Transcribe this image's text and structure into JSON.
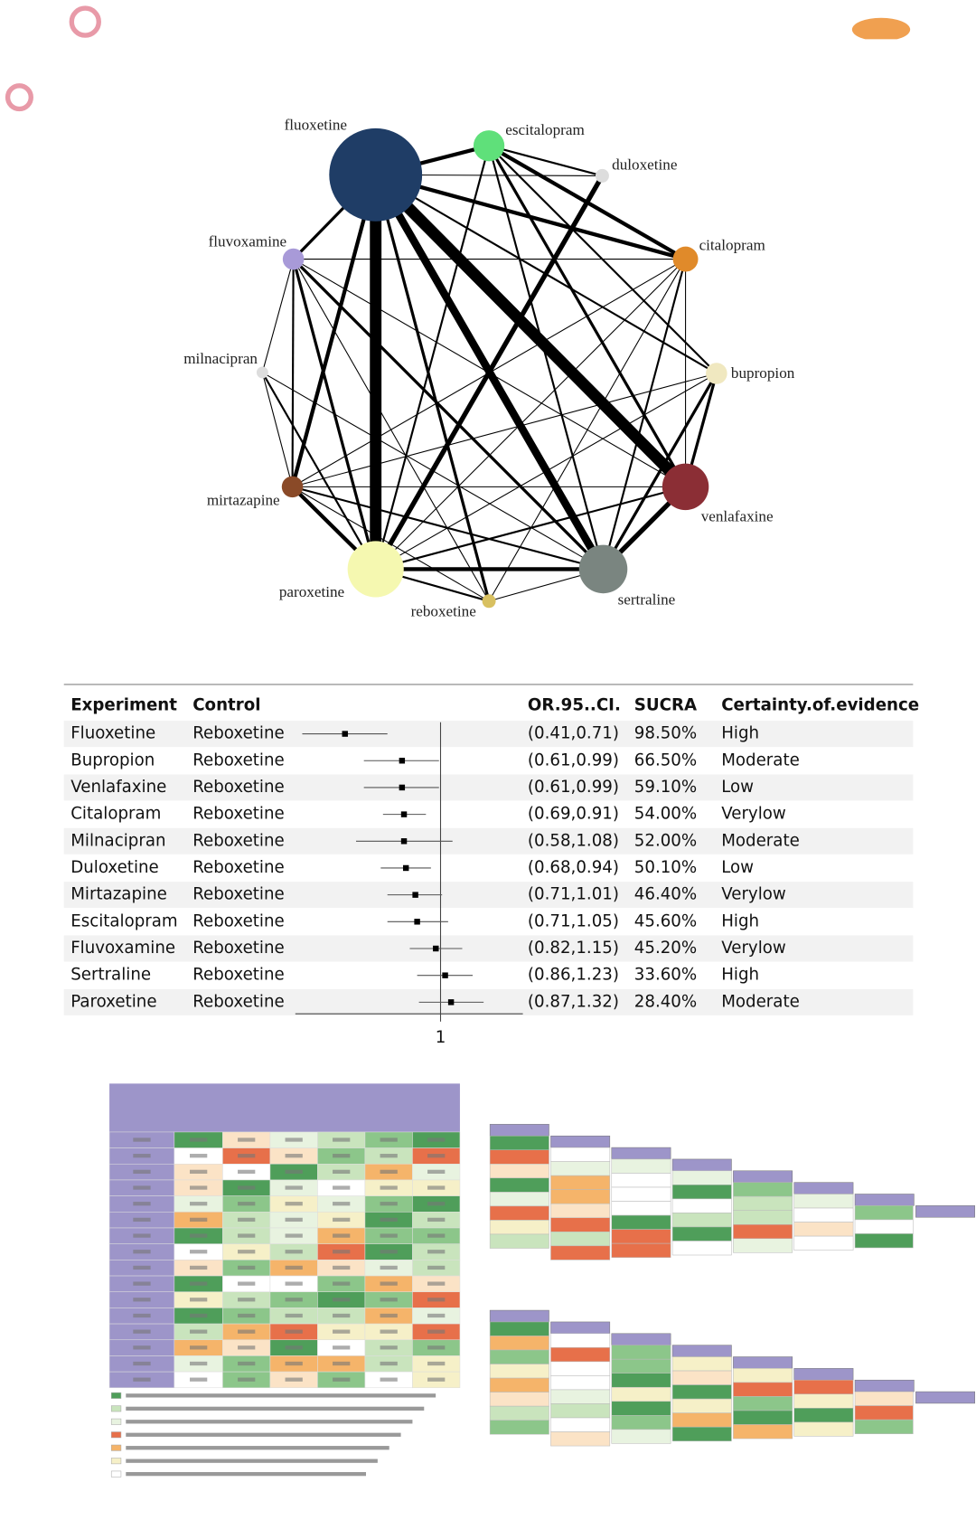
{
  "network": {
    "nodes": [
      {
        "label": "fluoxetine",
        "size": 48,
        "color": "#1f3d66"
      },
      {
        "label": "escitalopram",
        "size": 16,
        "color": "#5fe07a"
      },
      {
        "label": "duloxetine",
        "size": 7,
        "color": "#dddddd"
      },
      {
        "label": "citalopram",
        "size": 13,
        "color": "#e08a2a"
      },
      {
        "label": "bupropion",
        "size": 11,
        "color": "#f0e8c0"
      },
      {
        "label": "venlafaxine",
        "size": 24,
        "color": "#8b2e35"
      },
      {
        "label": "sertraline",
        "size": 25,
        "color": "#7a8580"
      },
      {
        "label": "reboxetine",
        "size": 7,
        "color": "#d8c060"
      },
      {
        "label": "paroxetine",
        "size": 29,
        "color": "#f5f8b0"
      },
      {
        "label": "mirtazapine",
        "size": 11,
        "color": "#8a4a28"
      },
      {
        "label": "milnacipran",
        "size": 6,
        "color": "#dddddd"
      },
      {
        "label": "fluvoxamine",
        "size": 11,
        "color": "#a89ad8"
      }
    ],
    "edges": [
      {
        "from": "fluoxetine",
        "to": "paroxetine",
        "weight": 12
      },
      {
        "from": "fluoxetine",
        "to": "venlafaxine",
        "weight": 12
      },
      {
        "from": "fluoxetine",
        "to": "sertraline",
        "weight": 8
      },
      {
        "from": "fluoxetine",
        "to": "escitalopram",
        "weight": 4
      },
      {
        "from": "fluoxetine",
        "to": "citalopram",
        "weight": 4
      },
      {
        "from": "fluoxetine",
        "to": "duloxetine",
        "weight": 1
      },
      {
        "from": "fluoxetine",
        "to": "mirtazapine",
        "weight": 4
      },
      {
        "from": "fluoxetine",
        "to": "fluvoxamine",
        "weight": 3
      },
      {
        "from": "fluoxetine",
        "to": "reboxetine",
        "weight": 3
      },
      {
        "from": "fluoxetine",
        "to": "bupropion",
        "weight": 2
      },
      {
        "from": "escitalopram",
        "to": "citalopram",
        "weight": 4
      },
      {
        "from": "escitalopram",
        "to": "venlafaxine",
        "weight": 3
      },
      {
        "from": "escitalopram",
        "to": "sertraline",
        "weight": 2
      },
      {
        "from": "escitalopram",
        "to": "bupropion",
        "weight": 2
      },
      {
        "from": "escitalopram",
        "to": "paroxetine",
        "weight": 2
      },
      {
        "from": "escitalopram",
        "to": "duloxetine",
        "weight": 2
      },
      {
        "from": "duloxetine",
        "to": "paroxetine",
        "weight": 5
      },
      {
        "from": "citalopram",
        "to": "sertraline",
        "weight": 2
      },
      {
        "from": "citalopram",
        "to": "paroxetine",
        "weight": 1
      },
      {
        "from": "citalopram",
        "to": "fluvoxamine",
        "weight": 1
      },
      {
        "from": "citalopram",
        "to": "mirtazapine",
        "weight": 1
      },
      {
        "from": "citalopram",
        "to": "reboxetine",
        "weight": 1
      },
      {
        "from": "citalopram",
        "to": "venlafaxine",
        "weight": 1
      },
      {
        "from": "bupropion",
        "to": "venlafaxine",
        "weight": 3
      },
      {
        "from": "bupropion",
        "to": "sertraline",
        "weight": 3
      },
      {
        "from": "bupropion",
        "to": "paroxetine",
        "weight": 1
      },
      {
        "from": "bupropion",
        "to": "mirtazapine",
        "weight": 1
      },
      {
        "from": "venlafaxine",
        "to": "sertraline",
        "weight": 5
      },
      {
        "from": "venlafaxine",
        "to": "paroxetine",
        "weight": 2
      },
      {
        "from": "venlafaxine",
        "to": "mirtazapine",
        "weight": 1
      },
      {
        "from": "venlafaxine",
        "to": "fluvoxamine",
        "weight": 1
      },
      {
        "from": "sertraline",
        "to": "paroxetine",
        "weight": 4
      },
      {
        "from": "sertraline",
        "to": "mirtazapine",
        "weight": 2
      },
      {
        "from": "sertraline",
        "to": "fluvoxamine",
        "weight": 3
      },
      {
        "from": "sertraline",
        "to": "reboxetine",
        "weight": 1
      },
      {
        "from": "sertraline",
        "to": "milnacipran",
        "weight": 1
      },
      {
        "from": "paroxetine",
        "to": "mirtazapine",
        "weight": 4
      },
      {
        "from": "paroxetine",
        "to": "fluvoxamine",
        "weight": 3
      },
      {
        "from": "paroxetine",
        "to": "milnacipran",
        "weight": 2
      },
      {
        "from": "paroxetine",
        "to": "reboxetine",
        "weight": 2
      },
      {
        "from": "reboxetine",
        "to": "fluvoxamine",
        "weight": 1
      },
      {
        "from": "reboxetine",
        "to": "mirtazapine",
        "weight": 1
      },
      {
        "from": "mirtazapine",
        "to": "milnacipran",
        "weight": 1
      },
      {
        "from": "milnacipran",
        "to": "fluvoxamine",
        "weight": 1
      },
      {
        "from": "fluvoxamine",
        "to": "mirtazapine",
        "weight": 2
      }
    ]
  },
  "forest": {
    "headers": [
      "Experiment",
      "Control",
      "OR.95..CI.",
      "SUCRA",
      "Certainty.of.evidence"
    ],
    "xlim": [
      0.38,
      1.7
    ],
    "log": true,
    "xticks": [
      1
    ],
    "rows": [
      {
        "experiment": "Fluoxetine",
        "control": "Reboxetine",
        "or": 0.54,
        "lower": 0.41,
        "upper": 0.71,
        "ci": "(0.41,0.71)",
        "sucra": "98.50%",
        "certainty": "High"
      },
      {
        "experiment": "Bupropion",
        "control": "Reboxetine",
        "or": 0.78,
        "lower": 0.61,
        "upper": 0.99,
        "ci": "(0.61,0.99)",
        "sucra": "66.50%",
        "certainty": "Moderate"
      },
      {
        "experiment": "Venlafaxine",
        "control": "Reboxetine",
        "or": 0.78,
        "lower": 0.61,
        "upper": 0.99,
        "ci": "(0.61,0.99)",
        "sucra": "59.10%",
        "certainty": "Low"
      },
      {
        "experiment": "Citalopram",
        "control": "Reboxetine",
        "or": 0.79,
        "lower": 0.69,
        "upper": 0.91,
        "ci": "(0.69,0.91)",
        "sucra": "54.00%",
        "certainty": "Verylow"
      },
      {
        "experiment": "Milnacipran",
        "control": "Reboxetine",
        "or": 0.79,
        "lower": 0.58,
        "upper": 1.08,
        "ci": "(0.58,1.08)",
        "sucra": "52.00%",
        "certainty": "Moderate"
      },
      {
        "experiment": "Duloxetine",
        "control": "Reboxetine",
        "or": 0.8,
        "lower": 0.68,
        "upper": 0.94,
        "ci": "(0.68,0.94)",
        "sucra": "50.10%",
        "certainty": "Low"
      },
      {
        "experiment": "Mirtazapine",
        "control": "Reboxetine",
        "or": 0.85,
        "lower": 0.71,
        "upper": 1.01,
        "ci": "(0.71,1.01)",
        "sucra": "46.40%",
        "certainty": "Verylow"
      },
      {
        "experiment": "Escitalopram",
        "control": "Reboxetine",
        "or": 0.86,
        "lower": 0.71,
        "upper": 1.05,
        "ci": "(0.71,1.05)",
        "sucra": "45.60%",
        "certainty": "High"
      },
      {
        "experiment": "Fluvoxamine",
        "control": "Reboxetine",
        "or": 0.97,
        "lower": 0.82,
        "upper": 1.15,
        "ci": "(0.82,1.15)",
        "sucra": "45.20%",
        "certainty": "Verylow"
      },
      {
        "experiment": "Sertraline",
        "control": "Reboxetine",
        "or": 1.03,
        "lower": 0.86,
        "upper": 1.23,
        "ci": "(0.86,1.23)",
        "sucra": "33.60%",
        "certainty": "High"
      },
      {
        "experiment": "Paroxetine",
        "control": "Reboxetine",
        "or": 1.07,
        "lower": 0.87,
        "upper": 1.32,
        "ci": "(0.87,1.32)",
        "sucra": "28.40%",
        "certainty": "Moderate"
      }
    ]
  }
}
